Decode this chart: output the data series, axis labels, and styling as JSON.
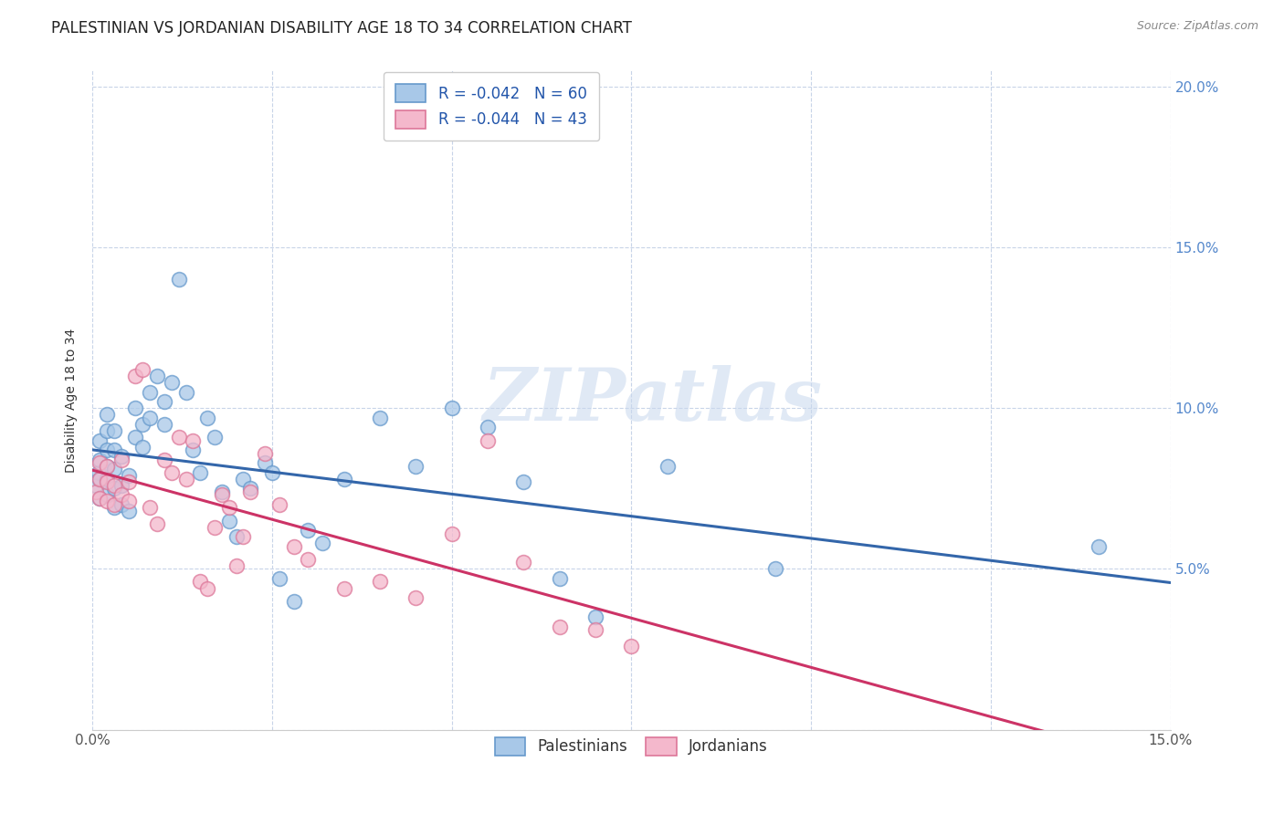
{
  "title": "PALESTINIAN VS JORDANIAN DISABILITY AGE 18 TO 34 CORRELATION CHART",
  "source": "Source: ZipAtlas.com",
  "ylabel": "Disability Age 18 to 34",
  "xlim": [
    0.0,
    0.15
  ],
  "ylim": [
    0.0,
    0.205
  ],
  "legend_entries": [
    {
      "label": "R = -0.042   N = 60",
      "color": "#a8c8e8"
    },
    {
      "label": "R = -0.044   N = 43",
      "color": "#f4b8cc"
    }
  ],
  "blue_color": "#a8c8e8",
  "pink_color": "#f4b8cc",
  "blue_edge_color": "#6699cc",
  "pink_edge_color": "#dd7799",
  "blue_line_color": "#3366aa",
  "pink_line_color": "#cc3366",
  "watermark": "ZIPatlas",
  "palestinians_x": [
    0.0005,
    0.0008,
    0.001,
    0.001,
    0.001,
    0.001,
    0.002,
    0.002,
    0.002,
    0.002,
    0.002,
    0.002,
    0.003,
    0.003,
    0.003,
    0.003,
    0.003,
    0.004,
    0.004,
    0.004,
    0.005,
    0.005,
    0.006,
    0.006,
    0.007,
    0.007,
    0.008,
    0.008,
    0.009,
    0.01,
    0.01,
    0.011,
    0.012,
    0.013,
    0.014,
    0.015,
    0.016,
    0.017,
    0.018,
    0.019,
    0.02,
    0.021,
    0.022,
    0.024,
    0.025,
    0.026,
    0.028,
    0.03,
    0.032,
    0.035,
    0.04,
    0.045,
    0.05,
    0.055,
    0.06,
    0.065,
    0.07,
    0.08,
    0.095,
    0.14
  ],
  "palestinians_y": [
    0.076,
    0.08,
    0.072,
    0.078,
    0.084,
    0.09,
    0.073,
    0.078,
    0.082,
    0.087,
    0.093,
    0.098,
    0.069,
    0.075,
    0.081,
    0.087,
    0.093,
    0.07,
    0.076,
    0.085,
    0.068,
    0.079,
    0.091,
    0.1,
    0.088,
    0.095,
    0.097,
    0.105,
    0.11,
    0.102,
    0.095,
    0.108,
    0.14,
    0.105,
    0.087,
    0.08,
    0.097,
    0.091,
    0.074,
    0.065,
    0.06,
    0.078,
    0.075,
    0.083,
    0.08,
    0.047,
    0.04,
    0.062,
    0.058,
    0.078,
    0.097,
    0.082,
    0.1,
    0.094,
    0.077,
    0.047,
    0.035,
    0.082,
    0.05,
    0.057
  ],
  "jordanians_x": [
    0.0005,
    0.001,
    0.001,
    0.001,
    0.002,
    0.002,
    0.002,
    0.003,
    0.003,
    0.004,
    0.004,
    0.005,
    0.005,
    0.006,
    0.007,
    0.008,
    0.009,
    0.01,
    0.011,
    0.012,
    0.013,
    0.014,
    0.015,
    0.016,
    0.017,
    0.018,
    0.019,
    0.02,
    0.021,
    0.022,
    0.024,
    0.026,
    0.028,
    0.03,
    0.035,
    0.04,
    0.045,
    0.05,
    0.055,
    0.06,
    0.065,
    0.07,
    0.075
  ],
  "jordanians_y": [
    0.074,
    0.072,
    0.078,
    0.083,
    0.071,
    0.077,
    0.082,
    0.07,
    0.076,
    0.073,
    0.084,
    0.071,
    0.077,
    0.11,
    0.112,
    0.069,
    0.064,
    0.084,
    0.08,
    0.091,
    0.078,
    0.09,
    0.046,
    0.044,
    0.063,
    0.073,
    0.069,
    0.051,
    0.06,
    0.074,
    0.086,
    0.07,
    0.057,
    0.053,
    0.044,
    0.046,
    0.041,
    0.061,
    0.09,
    0.052,
    0.032,
    0.031,
    0.026
  ],
  "background_color": "#ffffff",
  "grid_color": "#c8d4e8",
  "title_fontsize": 12,
  "axis_label_fontsize": 10,
  "tick_fontsize": 11,
  "right_tick_color": "#5588cc"
}
